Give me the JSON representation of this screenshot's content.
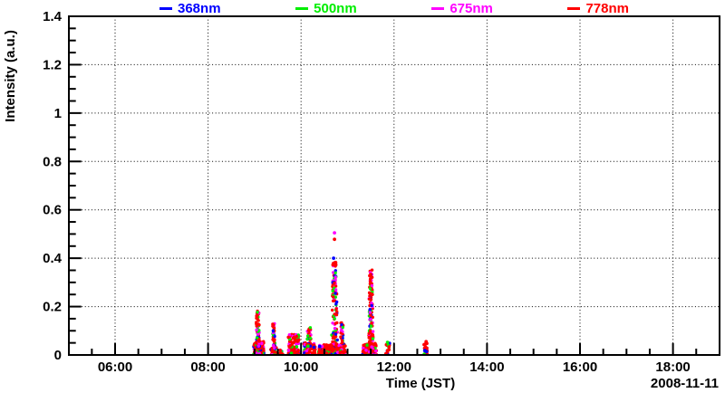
{
  "chart_data": {
    "type": "scatter",
    "title": "",
    "xlabel": "Time (JST)",
    "ylabel": "Intensity (a.u.)",
    "date_label": "2008-11-11",
    "background": "#ffffff",
    "axis_color": "#000000",
    "grid": "dotted-at-major-ticks",
    "legend_position": "top-center",
    "legend_marker": "dash",
    "x_domain_hours": [
      5,
      19
    ],
    "x_tick_hours": [
      6,
      8,
      10,
      12,
      14,
      16,
      18
    ],
    "x_tick_labels": [
      "06:00",
      "08:00",
      "10:00",
      "12:00",
      "14:00",
      "16:00",
      "18:00"
    ],
    "x_minor_step_hours": 0.5,
    "ylim": [
      0,
      1.4
    ],
    "y_tick_values": [
      0,
      0.2,
      0.4,
      0.6,
      0.8,
      1.0,
      1.2,
      1.4
    ],
    "y_tick_labels": [
      "0",
      "0.2",
      "0.4",
      "0.6",
      "0.8",
      "1",
      "1.2",
      "1.4"
    ],
    "y_grid_values": [
      0.2,
      0.4,
      0.6,
      0.8,
      1.0,
      1.2
    ],
    "y_minor_step": 0.05,
    "series": [
      {
        "name": "368nm",
        "color": "#0000ff"
      },
      {
        "name": "500nm",
        "color": "#00ee00"
      },
      {
        "name": "675nm",
        "color": "#ff00ff"
      },
      {
        "name": "778nm",
        "color": "#ff0000"
      }
    ],
    "bursts": [
      {
        "label": "burst ~09:04",
        "base": [
          8.98,
          9.2,
          0.055,
          95
        ],
        "column": [
          9.07,
          0.1,
          0.19,
          70
        ]
      },
      {
        "label": "burst ~09:24",
        "base": [
          9.34,
          9.47,
          0.03,
          30
        ],
        "column": [
          9.41,
          0.07,
          0.135,
          55
        ]
      },
      {
        "label": "specks ~09:34",
        "base": [
          9.53,
          9.61,
          0.02,
          12
        ],
        "column": null
      },
      {
        "label": "burst ~09:50",
        "base": [
          9.72,
          9.96,
          0.085,
          90
        ],
        "column": null
      },
      {
        "label": "burst ~10:10",
        "base": [
          10.06,
          10.31,
          0.05,
          70
        ],
        "column": [
          10.17,
          0.12,
          0.115,
          45
        ]
      },
      {
        "label": "base 10:22-10:57",
        "base": [
          10.38,
          10.95,
          0.045,
          235
        ],
        "column": null
      },
      {
        "label": "spike ~10:43",
        "base": null,
        "column": [
          10.72,
          0.14,
          0.385,
          125
        ]
      },
      {
        "label": "shoulder ~10:53",
        "base": null,
        "column": [
          10.88,
          0.09,
          0.135,
          40
        ]
      },
      {
        "label": "spike ~11:28",
        "base": [
          11.32,
          11.62,
          0.05,
          85
        ],
        "column": [
          11.5,
          0.11,
          0.365,
          125
        ]
      },
      {
        "label": "speck ~11:52",
        "base": [
          11.82,
          11.91,
          0.05,
          18
        ],
        "column": null
      },
      {
        "label": "speck ~12:41",
        "base": [
          12.64,
          12.72,
          0.055,
          16
        ],
        "column": null
      }
    ],
    "outliers": [
      {
        "series": 2,
        "t": 10.72,
        "i": 0.505
      },
      {
        "series": 3,
        "t": 10.72,
        "i": 0.478
      },
      {
        "series": 0,
        "t": 10.7,
        "i": 0.4
      },
      {
        "series": 1,
        "t": 11.86,
        "i": 0.052
      },
      {
        "series": 0,
        "t": 12.66,
        "i": 0.018
      },
      {
        "series": 0,
        "t": 12.7,
        "i": 0.014
      },
      {
        "series": 3,
        "t": 12.69,
        "i": 0.055
      },
      {
        "series": 0,
        "t": 10.4,
        "i": 0.035
      }
    ]
  }
}
